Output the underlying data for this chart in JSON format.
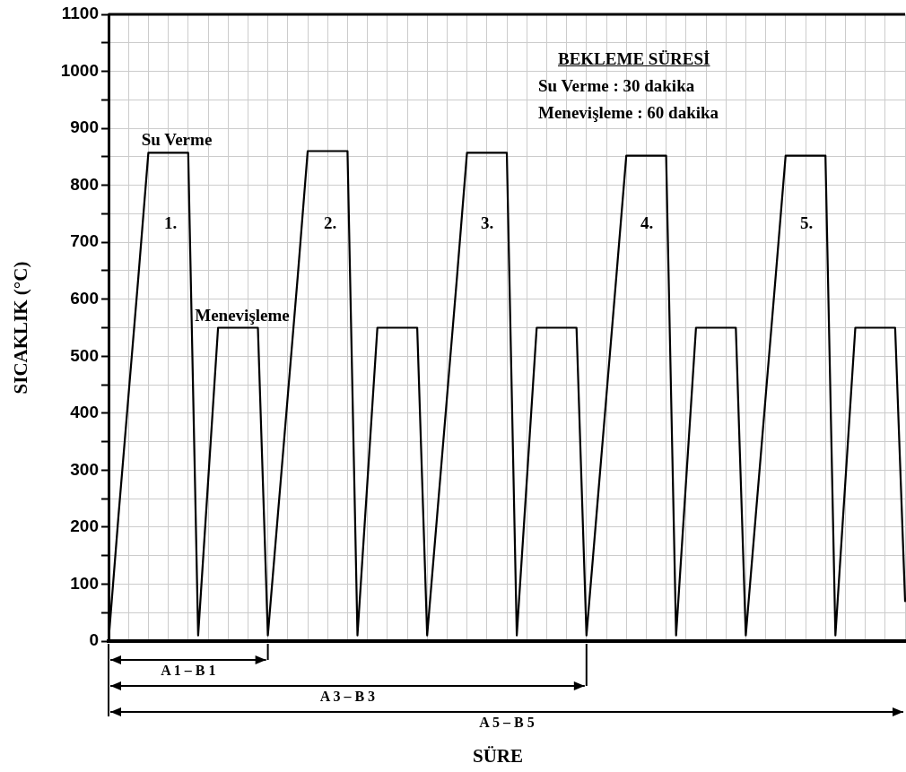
{
  "chart_data": {
    "type": "line",
    "ylabel": "SICAKLIK (°C)",
    "categories": [
      null,
      null,
      null,
      null,
      null,
      null,
      null,
      null,
      null,
      null,
      null,
      null,
      null,
      null,
      null,
      null,
      null,
      null,
      null,
      null,
      null,
      null,
      null,
      null,
      null,
      null,
      null,
      null,
      null,
      null,
      null,
      null,
      null,
      null,
      null,
      null,
      null,
      null,
      null,
      null,
      null,
      null,
      null,
      null,
      null,
      null,
      null,
      null,
      null,
      null,
      null,
      null,
      null,
      null,
      null,
      null,
      null,
      null,
      null,
      null,
      null,
      null,
      null,
      null,
      null,
      null,
      null,
      null,
      null,
      null,
      null,
      null,
      null,
      null,
      null,
      null,
      null,
      null,
      null,
      null,
      null
    ],
    "series": [
      {
        "color": "#000000",
        "values": [
          0,
          220,
          430,
          640,
          857,
          857,
          857,
          857,
          857,
          10,
          280,
          550,
          550,
          550,
          550,
          550,
          10,
          220,
          430,
          640,
          860,
          860,
          860,
          860,
          860,
          10,
          280,
          550,
          550,
          550,
          550,
          550,
          10,
          220,
          430,
          640,
          857,
          857,
          857,
          857,
          857,
          10,
          280,
          550,
          550,
          550,
          550,
          550,
          10,
          220,
          430,
          640,
          852,
          852,
          852,
          852,
          852,
          10,
          280,
          550,
          550,
          550,
          550,
          550,
          10,
          220,
          430,
          640,
          852,
          852,
          852,
          852,
          852,
          10,
          280,
          550,
          550,
          550,
          550,
          550,
          70
        ]
      }
    ],
    "ylim": [
      0,
      1100
    ],
    "yticks": [
      0,
      {
        "value": 50,
        "label": null
      },
      100,
      {
        "value": 150,
        "label": null
      },
      200,
      {
        "value": 250,
        "label": null
      },
      300,
      {
        "value": 350,
        "label": null
      },
      400,
      {
        "value": 450,
        "label": null
      },
      500,
      {
        "value": 550,
        "label": null
      },
      600,
      {
        "value": 650,
        "label": null
      },
      700,
      {
        "value": 750,
        "label": null
      },
      800,
      {
        "value": 850,
        "label": null
      },
      900,
      {
        "value": 950,
        "label": null
      },
      1000,
      {
        "value": 1050,
        "label": null
      },
      1100
    ],
    "grid": true,
    "tick_labels": "y",
    "marker": "none",
    "line_style": "solid",
    "annotations": [
      "Su Verme",
      "Menevişleme",
      "1.",
      "2.",
      "3.",
      "4.",
      "5.",
      "BEKLEME SÜRESİ",
      "Su Verme : 30 dakika",
      "Menevişleme : 60 dakika",
      "A 1 – B 1",
      "A 3 – B 3",
      "A 5 – B 5",
      "SÜRE"
    ]
  }
}
